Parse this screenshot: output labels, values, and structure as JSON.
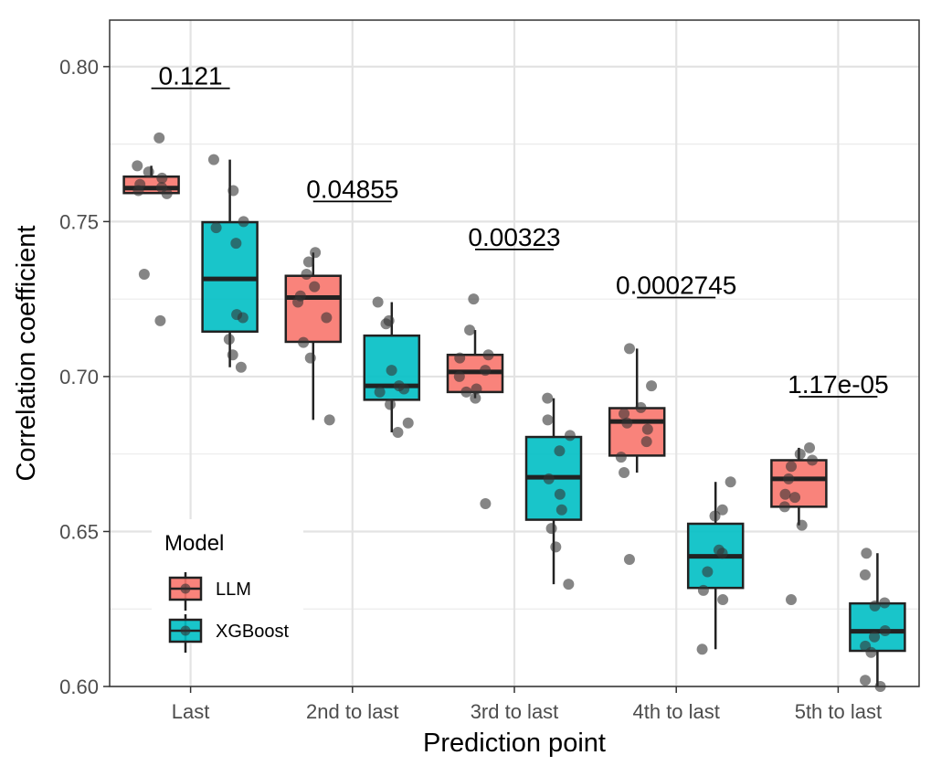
{
  "chart_data": {
    "type": "boxplot",
    "title": "",
    "xlabel": "Prediction point",
    "ylabel": "Correlation coefficient",
    "ylim": [
      0.6,
      0.815
    ],
    "yticks": [
      "0.60",
      "0.65",
      "0.70",
      "0.75",
      "0.80"
    ],
    "grid": true,
    "legend": {
      "title": "Model",
      "position": "bottom-left"
    },
    "colors": {
      "LLM": "#f8766d",
      "XGBoost": "#00bfc4"
    },
    "categories": [
      "Last",
      "2nd to last",
      "3rd to last",
      "4th to last",
      "5th to last"
    ],
    "series": [
      {
        "name": "LLM",
        "color": "#f8766d",
        "boxes": [
          {
            "q1": 0.7592,
            "median": 0.7608,
            "q3": 0.7645,
            "whisker_low": 0.759,
            "whisker_high": 0.768,
            "points": [
              0.777,
              0.768,
              0.766,
              0.764,
              0.762,
              0.761,
              0.76,
              0.759,
              0.733,
              0.718
            ]
          },
          {
            "q1": 0.7112,
            "median": 0.7255,
            "q3": 0.7325,
            "whisker_low": 0.686,
            "whisker_high": 0.74,
            "points": [
              0.74,
              0.737,
              0.733,
              0.729,
              0.726,
              0.724,
              0.719,
              0.711,
              0.706,
              0.686
            ]
          },
          {
            "q1": 0.695,
            "median": 0.7015,
            "q3": 0.707,
            "whisker_low": 0.693,
            "whisker_high": 0.715,
            "points": [
              0.725,
              0.715,
              0.707,
              0.706,
              0.702,
              0.7,
              0.696,
              0.695,
              0.693,
              0.659
            ]
          },
          {
            "q1": 0.6745,
            "median": 0.6855,
            "q3": 0.6898,
            "whisker_low": 0.669,
            "whisker_high": 0.709,
            "points": [
              0.709,
              0.697,
              0.69,
              0.688,
              0.685,
              0.683,
              0.679,
              0.674,
              0.669,
              0.641
            ]
          },
          {
            "q1": 0.658,
            "median": 0.667,
            "q3": 0.673,
            "whisker_low": 0.652,
            "whisker_high": 0.677,
            "points": [
              0.677,
              0.675,
              0.673,
              0.671,
              0.667,
              0.662,
              0.661,
              0.658,
              0.652,
              0.628
            ]
          }
        ]
      },
      {
        "name": "XGBoost",
        "color": "#00bfc4",
        "boxes": [
          {
            "q1": 0.7145,
            "median": 0.7315,
            "q3": 0.7498,
            "whisker_low": 0.703,
            "whisker_high": 0.77,
            "points": [
              0.77,
              0.76,
              0.75,
              0.748,
              0.743,
              0.72,
              0.719,
              0.712,
              0.707,
              0.703
            ]
          },
          {
            "q1": 0.6925,
            "median": 0.697,
            "q3": 0.7132,
            "whisker_low": 0.682,
            "whisker_high": 0.724,
            "points": [
              0.724,
              0.718,
              0.717,
              0.702,
              0.697,
              0.696,
              0.695,
              0.691,
              0.685,
              0.682
            ]
          },
          {
            "q1": 0.6538,
            "median": 0.6675,
            "q3": 0.6805,
            "whisker_low": 0.633,
            "whisker_high": 0.693,
            "points": [
              0.693,
              0.686,
              0.681,
              0.676,
              0.667,
              0.662,
              0.657,
              0.651,
              0.645,
              0.633
            ]
          },
          {
            "q1": 0.6318,
            "median": 0.642,
            "q3": 0.6525,
            "whisker_low": 0.612,
            "whisker_high": 0.666,
            "points": [
              0.666,
              0.657,
              0.655,
              0.644,
              0.643,
              0.637,
              0.631,
              0.628,
              0.612
            ]
          },
          {
            "q1": 0.6115,
            "median": 0.6178,
            "q3": 0.6268,
            "whisker_low": 0.6,
            "whisker_high": 0.643,
            "points": [
              0.643,
              0.636,
              0.627,
              0.626,
              0.618,
              0.616,
              0.613,
              0.611,
              0.602,
              0.6
            ]
          }
        ]
      }
    ],
    "annotations": [
      {
        "category": "Last",
        "text": "0.121",
        "y": 0.793
      },
      {
        "category": "2nd to last",
        "text": "0.04855",
        "y": 0.7565
      },
      {
        "category": "3rd to last",
        "text": "0.00323",
        "y": 0.741
      },
      {
        "category": "4th to last",
        "text": "0.0002745",
        "y": 0.7255
      },
      {
        "category": "5th to last",
        "text": "1.17e-05",
        "y": 0.6935
      }
    ]
  }
}
